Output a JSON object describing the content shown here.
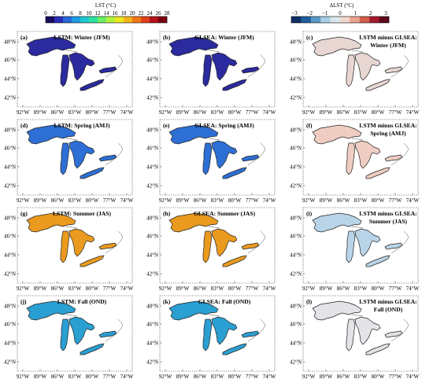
{
  "colorbars": {
    "lst": {
      "label": "LST (°C)",
      "ticks": [
        "0",
        "2",
        "4",
        "6",
        "8",
        "10",
        "12",
        "14",
        "16",
        "18",
        "20",
        "22",
        "24",
        "26",
        "28"
      ],
      "colors": [
        "#1a0a5e",
        "#2b2fb5",
        "#2a67d8",
        "#1f9be3",
        "#1dc7cf",
        "#2ee0a0",
        "#6cee63",
        "#b3f23a",
        "#e9e81f",
        "#f6b31a",
        "#f1761a",
        "#e2401a",
        "#b4141a",
        "#7a0010"
      ]
    },
    "delta": {
      "label": "ΔLST (°C)",
      "ticks": [
        "−3",
        "−2",
        "−1",
        "0",
        "1",
        "2",
        "3"
      ],
      "colors": [
        "#0b2f64",
        "#1f5f9e",
        "#5a98c6",
        "#a9cde4",
        "#dbe7ef",
        "#f2d6cd",
        "#eaa28d",
        "#d25f4c",
        "#a11b2a",
        "#5e0a1c"
      ]
    }
  },
  "axes": {
    "lat_ticks": [
      "48°N",
      "46°N",
      "44°N",
      "42°N"
    ],
    "lon_ticks": [
      "92°W",
      "89°W",
      "86°W",
      "83°W",
      "80°W",
      "77°W",
      "74°W"
    ]
  },
  "panels": [
    {
      "tag": "(a)",
      "title_lines": [
        "LSTM: Winter (JFM)"
      ],
      "fill": "#2b2a9e",
      "row": 0,
      "col": 0
    },
    {
      "tag": "(b)",
      "title_lines": [
        "GLSEA: Winter (JFM)"
      ],
      "fill": "#2b2a9e",
      "row": 0,
      "col": 1
    },
    {
      "tag": "(c)",
      "title_lines": [
        "LSTM minus GLSEA:",
        "Winter (JFM)"
      ],
      "fill": "#e7d6d2",
      "row": 0,
      "col": 2
    },
    {
      "tag": "(d)",
      "title_lines": [
        "LSTM: Spring (AMJ)"
      ],
      "fill": "#2d6fd4",
      "row": 1,
      "col": 0
    },
    {
      "tag": "(e)",
      "title_lines": [
        "GLSEA: Spring (AMJ)"
      ],
      "fill": "#2d6fd4",
      "row": 1,
      "col": 1
    },
    {
      "tag": "(f)",
      "title_lines": [
        "LSTM minus GLSEA:",
        "Spring (AMJ)"
      ],
      "fill": "#efcdc2",
      "row": 1,
      "col": 2
    },
    {
      "tag": "(g)",
      "title_lines": [
        "LSTM: Summer (JAS)"
      ],
      "fill": "#ea9a1f",
      "row": 2,
      "col": 0
    },
    {
      "tag": "(h)",
      "title_lines": [
        "GLSEA: Summer (JAS)"
      ],
      "fill": "#ea9a1f",
      "row": 2,
      "col": 1
    },
    {
      "tag": "(i)",
      "title_lines": [
        "LSTM minus GLSEA:",
        "Summer (JAS)"
      ],
      "fill": "#b9d4e8",
      "row": 2,
      "col": 2
    },
    {
      "tag": "(j)",
      "title_lines": [
        "LSTM: Fall (OND)"
      ],
      "fill": "#2a9fd2",
      "row": 3,
      "col": 0
    },
    {
      "tag": "(k)",
      "title_lines": [
        "GLSEA: Fall (OND)"
      ],
      "fill": "#2a9fd2",
      "row": 3,
      "col": 1
    },
    {
      "tag": "(l)",
      "title_lines": [
        "LSTM minus GLSEA:",
        "Fall (OND)"
      ],
      "fill": "#e3e3e8",
      "row": 3,
      "col": 2
    }
  ]
}
